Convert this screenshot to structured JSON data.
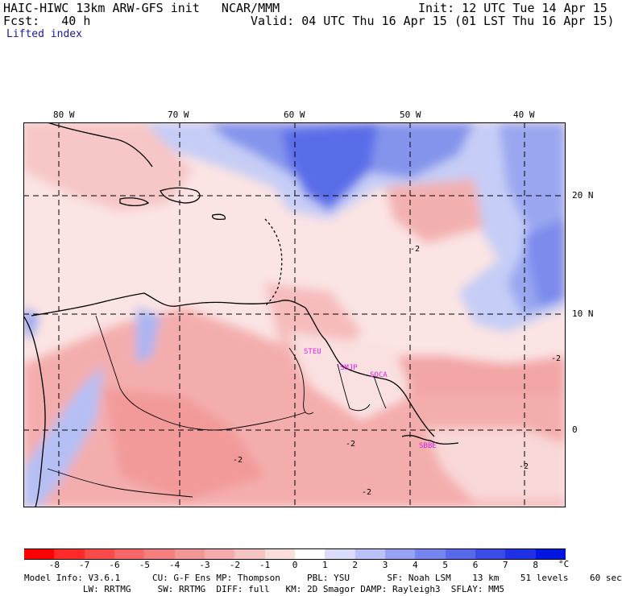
{
  "header": {
    "left_line1": "HAIC-HIWC 13km ARW-GFS init   NCAR/MMM",
    "right_line1": "Init: 12 UTC Tue 14 Apr 15",
    "left_line2": "Fcst:   40 h",
    "right_line2": "Valid: 04 UTC Thu 16 Apr 15 (01 LST Thu 16 Apr 15)",
    "field": "Lifted index"
  },
  "map": {
    "lon_labels": [
      "80 W",
      "70 W",
      "60 W",
      "50 W",
      "40 W"
    ],
    "lat_labels": [
      "20 N",
      "10 N",
      "0"
    ],
    "stations": [
      "STEU",
      "SMJP",
      "SOCA",
      "SBBE"
    ],
    "contour_labels": [
      "-2",
      "-2",
      "-2",
      "-2",
      "-2",
      "-2"
    ],
    "colors": {
      "neg_strong": "#f4a7a7",
      "neg_weak": "#fbdada",
      "pos_weak": "#d6dcf7",
      "pos_strong": "#6d7fe8",
      "station": "#e020e0",
      "coast": "#000000"
    }
  },
  "colorbar": {
    "ticks": [
      "-8",
      "-7",
      "-6",
      "-5",
      "-4",
      "-3",
      "-2",
      "-1",
      "0",
      "1",
      "2",
      "3",
      "4",
      "5",
      "6",
      "7",
      "8"
    ],
    "unit": "°C",
    "colors": [
      "#ff0000",
      "#ff2a2a",
      "#fb4a4a",
      "#f86666",
      "#f57f7f",
      "#f29696",
      "#f3abab",
      "#f6c3c3",
      "#fadede",
      "#ffffff",
      "#d9ddfb",
      "#b9c1f7",
      "#97a3f2",
      "#7786ee",
      "#5868ea",
      "#3b4ce6",
      "#1f31e2",
      "#0015dd"
    ]
  },
  "footer": {
    "line1": "Model Info: V3.6.1      CU: G-F Ens MP: Thompson     PBL: YSU       SF: Noah LSM    13 km    51 levels    60 sec",
    "line2": "           LW: RRTMG     SW: RRTMG  DIFF: full   KM: 2D Smagor DAMP: Rayleigh3  SFLAY: MM5"
  }
}
